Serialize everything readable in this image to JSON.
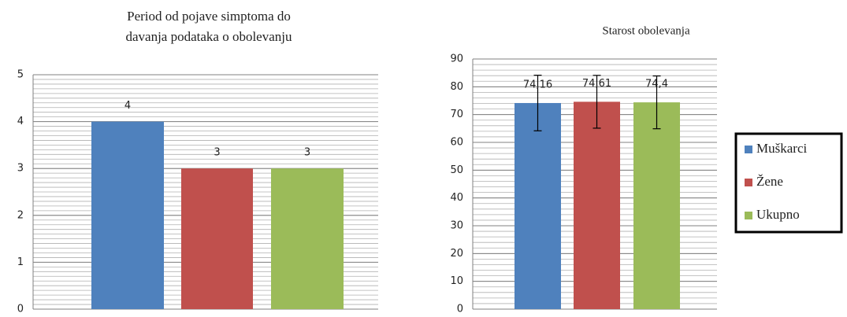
{
  "chart_data": [
    {
      "type": "bar",
      "title": [
        "Period od pojave simptoma  do",
        "davanja podataka o obolevanju"
      ],
      "categories": [
        null,
        null,
        null
      ],
      "values": [
        4,
        3,
        3
      ],
      "colors": [
        "#4f81bd",
        "#c0504d",
        "#9bbb59"
      ],
      "ylim": [
        0,
        5
      ],
      "yticks": [
        0,
        1,
        2,
        3,
        4,
        5
      ],
      "minor_step": 0.1,
      "grid": true
    },
    {
      "type": "bar_error",
      "title": "Starost obolevanja",
      "series": [
        {
          "name": "Muškarci",
          "color": "#4f81bd",
          "values": [
            74.16
          ],
          "value_labels": [
            "74,16"
          ],
          "errors": [
            10
          ]
        },
        {
          "name": "Žene",
          "color": "#c0504d",
          "values": [
            74.61
          ],
          "value_labels": [
            "74,61"
          ],
          "errors": [
            9.5
          ]
        },
        {
          "name": "Ukupno",
          "color": "#9bbb59",
          "values": [
            74.4
          ],
          "value_labels": [
            "74,4"
          ],
          "errors": [
            9.5
          ]
        }
      ],
      "ylim": [
        0,
        90
      ],
      "yticks": [
        0,
        10,
        20,
        30,
        40,
        50,
        60,
        70,
        80,
        90
      ],
      "minor_step": 2,
      "grid": true,
      "legend": "right"
    }
  ]
}
